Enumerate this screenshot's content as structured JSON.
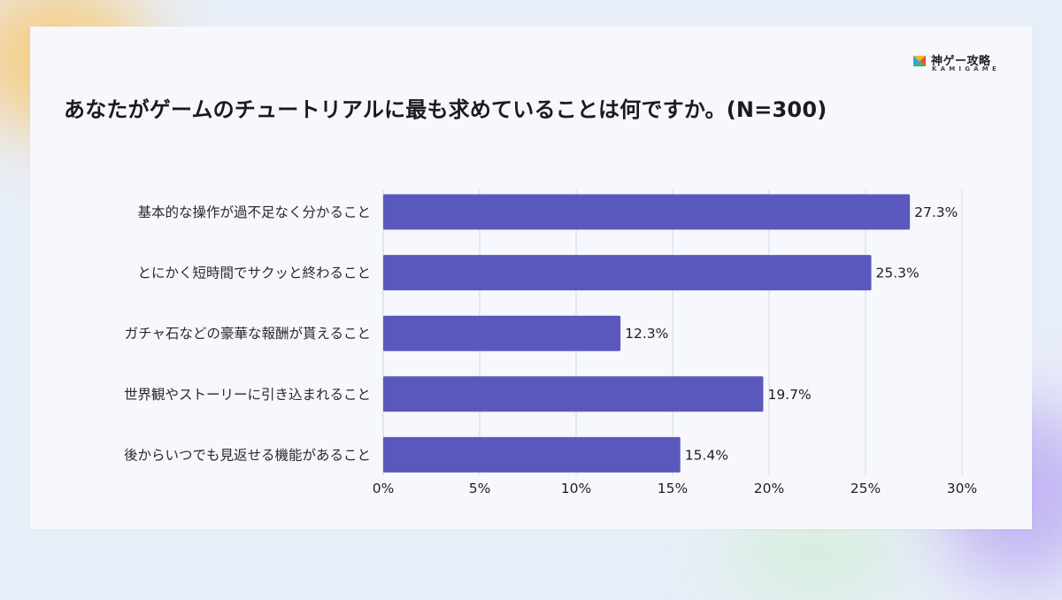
{
  "brand": {
    "name": "神ゲー攻略",
    "sub": "KAMIGAME",
    "colors": [
      "#2fa6d9",
      "#f2b632",
      "#e8503f",
      "#3fb36c"
    ]
  },
  "chart_data": {
    "type": "bar",
    "orientation": "horizontal",
    "title": "あなたがゲームのチュートリアルに最も求めていることは何ですか。(N=300)",
    "categories": [
      "基本的な操作が過不足なく分かること",
      "とにかく短時間でサクッと終わること",
      "ガチャ石などの豪華な報酬が貰えること",
      "世界観やストーリーに引き込まれること",
      "後からいつでも見返せる機能があること"
    ],
    "values": [
      27.3,
      25.3,
      12.3,
      19.7,
      15.4
    ],
    "value_labels": [
      "27.3%",
      "25.3%",
      "12.3%",
      "19.7%",
      "15.4%"
    ],
    "xlim": [
      0,
      30
    ],
    "x_ticks": [
      0,
      5,
      10,
      15,
      20,
      25,
      30
    ],
    "x_tick_labels": [
      "0%",
      "5%",
      "10%",
      "15%",
      "20%",
      "25%",
      "30%"
    ],
    "bar_color": "#5b58bd",
    "grid": true,
    "legend": "none"
  }
}
